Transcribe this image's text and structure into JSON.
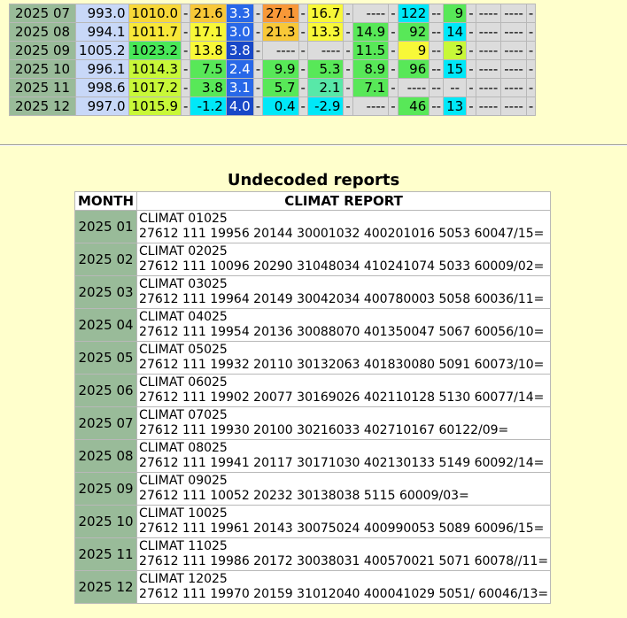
{
  "monthly_table": {
    "rows": [
      {
        "month": "2025 07",
        "cells": [
          {
            "v": "993.0",
            "c": "#c8d8f8"
          },
          {
            "v": "1010.0",
            "c": "#f8d838"
          },
          {
            "v": "-",
            "c": "#dcdcdc"
          },
          {
            "v": "21.6",
            "c": "#f8c838"
          },
          {
            "v": "3.3",
            "c": "#2868e8",
            "fg": "#ffffff"
          },
          {
            "v": "-",
            "c": "#dcdcdc"
          },
          {
            "v": "27.1",
            "c": "#f89838"
          },
          {
            "v": "-",
            "c": "#dcdcdc"
          },
          {
            "v": "16.7",
            "c": "#f8f838"
          },
          {
            "v": "-",
            "c": "#dcdcdc"
          },
          {
            "v": "----",
            "c": "#dcdcdc"
          },
          {
            "v": "-",
            "c": "#dcdcdc"
          },
          {
            "v": "122",
            "c": "#00e8f8"
          },
          {
            "v": "--",
            "c": "#dcdcdc"
          },
          {
            "v": "9",
            "c": "#58e858"
          },
          {
            "v": "-",
            "c": "#dcdcdc"
          },
          {
            "v": "----",
            "c": "#dcdcdc"
          },
          {
            "v": "----",
            "c": "#dcdcdc"
          },
          {
            "v": "-",
            "c": "#dcdcdc"
          }
        ]
      },
      {
        "month": "2025 08",
        "cells": [
          {
            "v": "994.1",
            "c": "#c8d8f8"
          },
          {
            "v": "1011.7",
            "c": "#f8e838"
          },
          {
            "v": "-",
            "c": "#dcdcdc"
          },
          {
            "v": "17.1",
            "c": "#f8f838"
          },
          {
            "v": "3.0",
            "c": "#2868e8",
            "fg": "#ffffff"
          },
          {
            "v": "-",
            "c": "#dcdcdc"
          },
          {
            "v": "21.3",
            "c": "#f8c838"
          },
          {
            "v": "-",
            "c": "#dcdcdc"
          },
          {
            "v": "13.3",
            "c": "#f8f838"
          },
          {
            "v": "-",
            "c": "#dcdcdc"
          },
          {
            "v": "14.9",
            "c": "#58e858"
          },
          {
            "v": "-",
            "c": "#dcdcdc"
          },
          {
            "v": "92",
            "c": "#58e858"
          },
          {
            "v": "--",
            "c": "#dcdcdc"
          },
          {
            "v": "14",
            "c": "#00e8f8"
          },
          {
            "v": "-",
            "c": "#dcdcdc"
          },
          {
            "v": "----",
            "c": "#dcdcdc"
          },
          {
            "v": "----",
            "c": "#dcdcdc"
          },
          {
            "v": "-",
            "c": "#dcdcdc"
          }
        ]
      },
      {
        "month": "2025 09",
        "cells": [
          {
            "v": "1005.2",
            "c": "#c8d8f8"
          },
          {
            "v": "1023.2",
            "c": "#48e858"
          },
          {
            "v": "-",
            "c": "#dcdcdc"
          },
          {
            "v": "13.8",
            "c": "#f8f838"
          },
          {
            "v": "3.8",
            "c": "#1848c8",
            "fg": "#ffffff"
          },
          {
            "v": "-",
            "c": "#dcdcdc"
          },
          {
            "v": "----",
            "c": "#dcdcdc"
          },
          {
            "v": "-",
            "c": "#dcdcdc"
          },
          {
            "v": "----",
            "c": "#dcdcdc"
          },
          {
            "v": "-",
            "c": "#dcdcdc"
          },
          {
            "v": "11.5",
            "c": "#58e858"
          },
          {
            "v": "-",
            "c": "#dcdcdc"
          },
          {
            "v": "9",
            "c": "#f8f838"
          },
          {
            "v": "--",
            "c": "#dcdcdc"
          },
          {
            "v": "3",
            "c": "#c8f838"
          },
          {
            "v": "-",
            "c": "#dcdcdc"
          },
          {
            "v": "----",
            "c": "#dcdcdc"
          },
          {
            "v": "----",
            "c": "#dcdcdc"
          },
          {
            "v": "-",
            "c": "#dcdcdc"
          }
        ]
      },
      {
        "month": "2025 10",
        "cells": [
          {
            "v": "996.1",
            "c": "#c8d8f8"
          },
          {
            "v": "1014.3",
            "c": "#c8f838"
          },
          {
            "v": "-",
            "c": "#dcdcdc"
          },
          {
            "v": "7.5",
            "c": "#58e858"
          },
          {
            "v": "2.4",
            "c": "#2868e8",
            "fg": "#ffffff"
          },
          {
            "v": "-",
            "c": "#dcdcdc"
          },
          {
            "v": "9.9",
            "c": "#58e858"
          },
          {
            "v": "-",
            "c": "#dcdcdc"
          },
          {
            "v": "5.3",
            "c": "#58e858"
          },
          {
            "v": "-",
            "c": "#dcdcdc"
          },
          {
            "v": "8.9",
            "c": "#58e858"
          },
          {
            "v": "-",
            "c": "#dcdcdc"
          },
          {
            "v": "96",
            "c": "#58e858"
          },
          {
            "v": "--",
            "c": "#dcdcdc"
          },
          {
            "v": "15",
            "c": "#00e8f8"
          },
          {
            "v": "-",
            "c": "#dcdcdc"
          },
          {
            "v": "----",
            "c": "#dcdcdc"
          },
          {
            "v": "----",
            "c": "#dcdcdc"
          },
          {
            "v": "-",
            "c": "#dcdcdc"
          }
        ]
      },
      {
        "month": "2025 11",
        "cells": [
          {
            "v": "998.6",
            "c": "#c8d8f8"
          },
          {
            "v": "1017.2",
            "c": "#c8f838"
          },
          {
            "v": "-",
            "c": "#dcdcdc"
          },
          {
            "v": "3.8",
            "c": "#58e858"
          },
          {
            "v": "3.1",
            "c": "#2868e8",
            "fg": "#ffffff"
          },
          {
            "v": "-",
            "c": "#dcdcdc"
          },
          {
            "v": "5.7",
            "c": "#58e858"
          },
          {
            "v": "-",
            "c": "#dcdcdc"
          },
          {
            "v": "2.1",
            "c": "#58e8a8"
          },
          {
            "v": "-",
            "c": "#dcdcdc"
          },
          {
            "v": "7.1",
            "c": "#58e858"
          },
          {
            "v": "-",
            "c": "#dcdcdc"
          },
          {
            "v": "----",
            "c": "#dcdcdc"
          },
          {
            "v": "--",
            "c": "#dcdcdc"
          },
          {
            "v": "--",
            "c": "#dcdcdc"
          },
          {
            "v": "-",
            "c": "#dcdcdc"
          },
          {
            "v": "----",
            "c": "#dcdcdc"
          },
          {
            "v": "----",
            "c": "#dcdcdc"
          },
          {
            "v": "-",
            "c": "#dcdcdc"
          }
        ]
      },
      {
        "month": "2025 12",
        "cells": [
          {
            "v": "997.0",
            "c": "#c8d8f8"
          },
          {
            "v": "1015.9",
            "c": "#c8f838"
          },
          {
            "v": "-",
            "c": "#dcdcdc"
          },
          {
            "v": "-1.2",
            "c": "#00e8f8"
          },
          {
            "v": "4.0",
            "c": "#1848c8",
            "fg": "#ffffff"
          },
          {
            "v": "-",
            "c": "#dcdcdc"
          },
          {
            "v": "0.4",
            "c": "#00e8f8"
          },
          {
            "v": "-",
            "c": "#dcdcdc"
          },
          {
            "v": "-2.9",
            "c": "#00e8f8"
          },
          {
            "v": "-",
            "c": "#dcdcdc"
          },
          {
            "v": "----",
            "c": "#dcdcdc"
          },
          {
            "v": "-",
            "c": "#dcdcdc"
          },
          {
            "v": "46",
            "c": "#58e858"
          },
          {
            "v": "--",
            "c": "#dcdcdc"
          },
          {
            "v": "13",
            "c": "#00e8f8"
          },
          {
            "v": "-",
            "c": "#dcdcdc"
          },
          {
            "v": "----",
            "c": "#dcdcdc"
          },
          {
            "v": "----",
            "c": "#dcdcdc"
          },
          {
            "v": "-",
            "c": "#dcdcdc"
          }
        ]
      }
    ]
  },
  "section_title": "Undecoded reports",
  "reports_table": {
    "headers": {
      "month": "MONTH",
      "report": "CLIMAT REPORT"
    },
    "rows": [
      {
        "month": "2025 01",
        "line1": "CLIMAT 01025",
        "line2": "27612 111 19956 20144 30001032 400201016 5053 60047/15="
      },
      {
        "month": "2025 02",
        "line1": "CLIMAT 02025",
        "line2": "27612 111 10096 20290 31048034 410241074 5033 60009/02="
      },
      {
        "month": "2025 03",
        "line1": "CLIMAT 03025",
        "line2": "27612 111 19964 20149 30042034 400780003 5058 60036/11="
      },
      {
        "month": "2025 04",
        "line1": "CLIMAT 04025",
        "line2": "27612 111 19954 20136 30088070 401350047 5067 60056/10="
      },
      {
        "month": "2025 05",
        "line1": "CLIMAT 05025",
        "line2": "27612 111 19932 20110 30132063 401830080 5091 60073/10="
      },
      {
        "month": "2025 06",
        "line1": "CLIMAT 06025",
        "line2": "27612 111 19902 20077 30169026 402110128 5130 60077/14="
      },
      {
        "month": "2025 07",
        "line1": "CLIMAT 07025",
        "line2": "27612 111 19930 20100 30216033 402710167 60122/09="
      },
      {
        "month": "2025 08",
        "line1": "CLIMAT 08025",
        "line2": "27612 111 19941 20117 30171030 402130133 5149 60092/14="
      },
      {
        "month": "2025 09",
        "line1": "CLIMAT 09025",
        "line2": "27612 111 10052 20232 30138038 5115 60009/03="
      },
      {
        "month": "2025 10",
        "line1": "CLIMAT 10025",
        "line2": "27612 111 19961 20143 30075024 400990053 5089 60096/15="
      },
      {
        "month": "2025 11",
        "line1": "CLIMAT 11025",
        "line2": "27612 111 19986 20172 30038031 400570021 5071 60078//11="
      },
      {
        "month": "2025 12",
        "line1": "CLIMAT 12025",
        "line2": "27612 111 19970 20159 31012040 400041029 5051/ 60046/13="
      }
    ]
  }
}
